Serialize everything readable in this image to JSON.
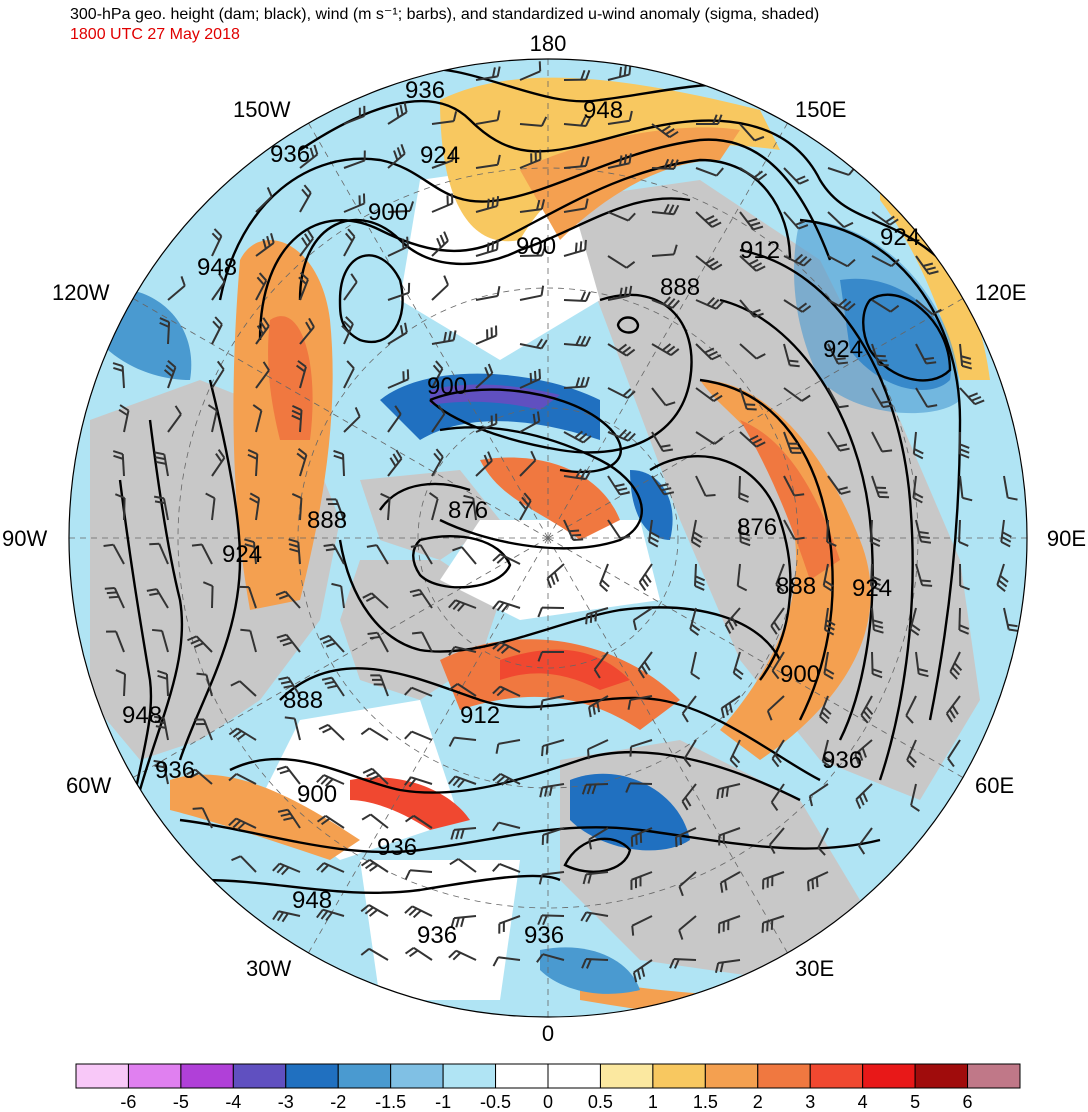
{
  "header": {
    "title": "300-hPa geo. height (dam; black), wind (m s⁻¹; barbs), and standardized u-wind anomaly (sigma, shaded)",
    "valid_time": "1800 UTC 27 May 2018"
  },
  "map": {
    "projection": "north polar stereographic",
    "longitude_labels": {
      "top": "180",
      "bottom": "0",
      "left": "90W",
      "right": "90E",
      "upper_left_1": "150W",
      "upper_left_2": "120W",
      "upper_right_1": "150E",
      "upper_right_2": "120E",
      "lower_left_1": "60W",
      "lower_left_2": "30W",
      "lower_right_1": "60E",
      "lower_right_2": "30E"
    },
    "contour_labels": [
      "936",
      "948",
      "924",
      "936",
      "900",
      "948",
      "900",
      "888",
      "912",
      "924",
      "924",
      "900",
      "876",
      "888",
      "924",
      "876",
      "888",
      "924",
      "900",
      "948",
      "888",
      "912",
      "936",
      "936",
      "900",
      "936",
      "948",
      "936",
      "936"
    ]
  },
  "colorbar": {
    "colors": [
      "#f8c8f8",
      "#e080f0",
      "#b040d8",
      "#6050c0",
      "#2070c0",
      "#4a9ad0",
      "#80c0e4",
      "#b0e4f4",
      "#ffffff",
      "#ffffff",
      "#fbe8a0",
      "#f8c860",
      "#f4a050",
      "#f07840",
      "#f04830",
      "#e81818",
      "#a00c0c",
      "#c07888"
    ],
    "tick_labels": [
      "-6",
      "-5",
      "-4",
      "-3",
      "-2",
      "-1.5",
      "-1",
      "-0.5",
      "0",
      "0.5",
      "1",
      "1.5",
      "2",
      "3",
      "4",
      "5",
      "6"
    ]
  }
}
